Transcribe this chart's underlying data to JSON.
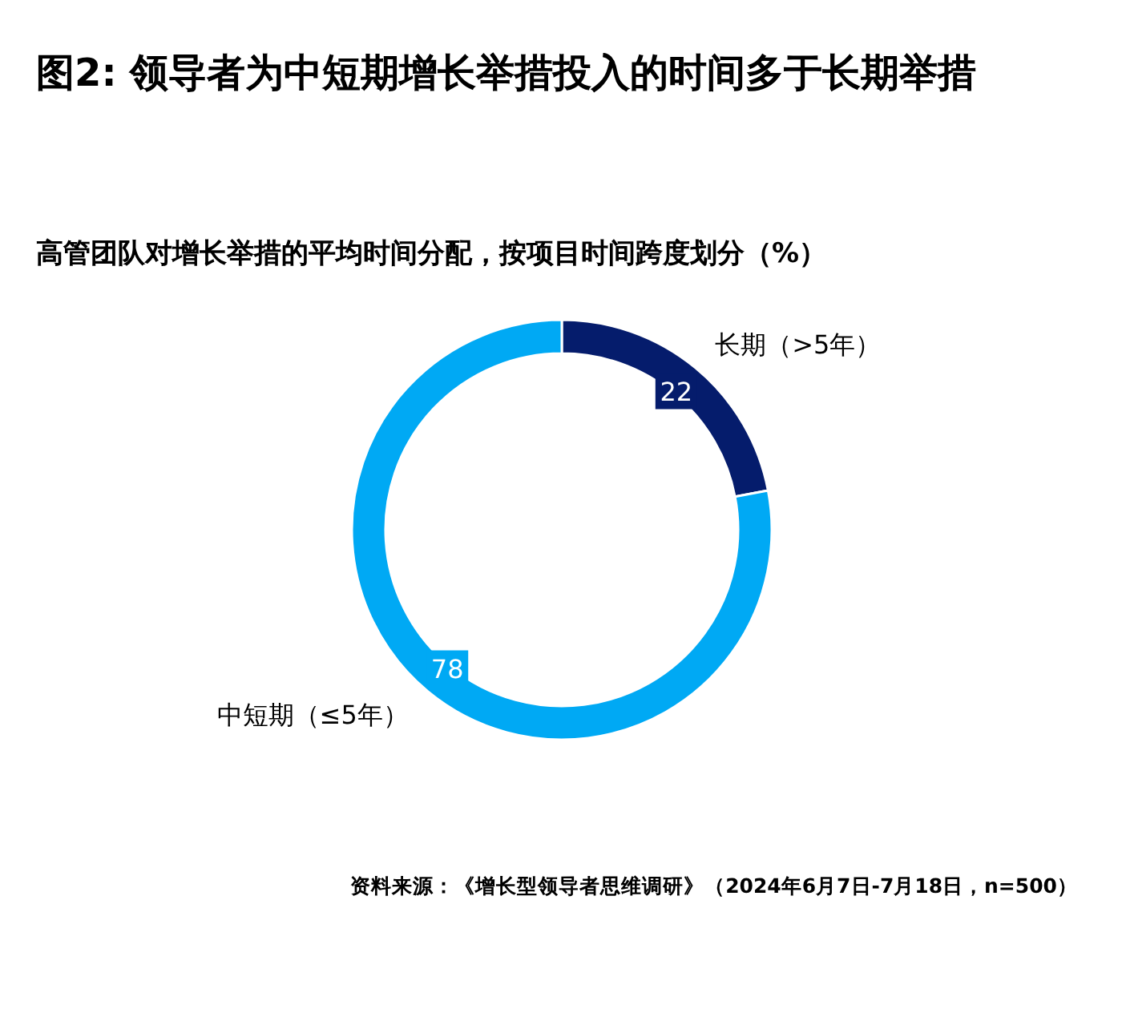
{
  "chart_data": {
    "type": "donut",
    "title": "图2: 领导者为中短期增长举措投入的时间多于长期举措",
    "subtitle": "高管团队对增长举措的平均时间分配，按项目时间跨度划分（%）",
    "categories": [
      "长期（>5年）",
      "中短期（≤5年）"
    ],
    "values": [
      22,
      78
    ],
    "colors": [
      "#051c6c",
      "#00a9f4"
    ],
    "data_labels": true,
    "annotations": [
      "资料来源：《增长型领导者思维调研》（2024年6月7日-7月18日，n=500）"
    ]
  }
}
